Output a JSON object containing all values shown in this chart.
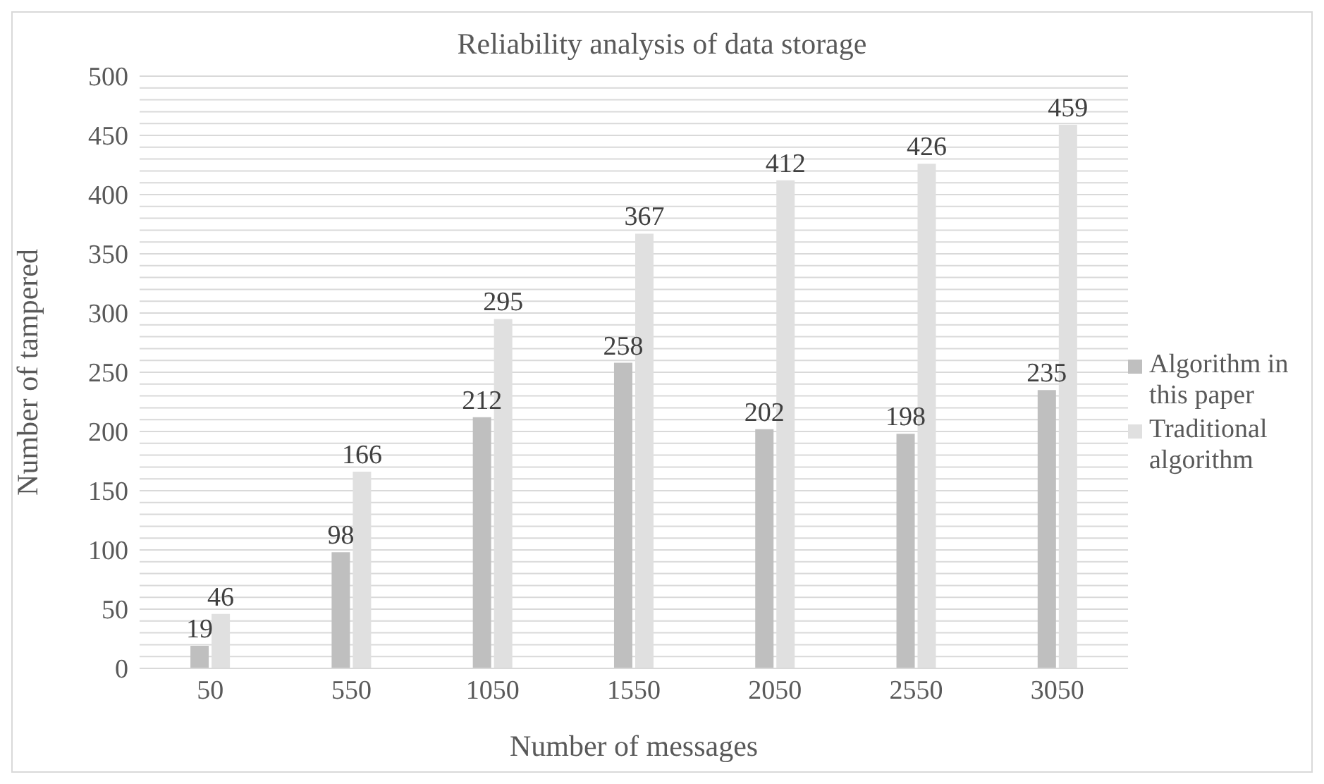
{
  "chart_data": {
    "type": "bar",
    "title": "Reliability analysis of data storage",
    "xlabel": "Number of messages",
    "ylabel": "Number of tampered",
    "categories": [
      "50",
      "550",
      "1050",
      "1550",
      "2050",
      "2550",
      "3050"
    ],
    "series": [
      {
        "name": "Algorithm in this paper",
        "color": "#bfbfbf",
        "values": [
          19,
          98,
          212,
          258,
          202,
          198,
          235
        ]
      },
      {
        "name": "Traditional algorithm",
        "color": "#e0e0e0",
        "values": [
          46,
          166,
          295,
          367,
          412,
          426,
          459
        ]
      }
    ],
    "ylim": [
      0,
      500
    ],
    "yticks": [
      0,
      {
        "value": 10,
        "label": null
      },
      {
        "value": 20,
        "label": null
      },
      {
        "value": 30,
        "label": null
      },
      {
        "value": 40,
        "label": null
      },
      50,
      {
        "value": 60,
        "label": null
      },
      {
        "value": 70,
        "label": null
      },
      {
        "value": 80,
        "label": null
      },
      {
        "value": 90,
        "label": null
      },
      100,
      {
        "value": 110,
        "label": null
      },
      {
        "value": 120,
        "label": null
      },
      {
        "value": 130,
        "label": null
      },
      {
        "value": 140,
        "label": null
      },
      150,
      {
        "value": 160,
        "label": null
      },
      {
        "value": 170,
        "label": null
      },
      {
        "value": 180,
        "label": null
      },
      {
        "value": 190,
        "label": null
      },
      200,
      {
        "value": 210,
        "label": null
      },
      {
        "value": 220,
        "label": null
      },
      {
        "value": 230,
        "label": null
      },
      {
        "value": 240,
        "label": null
      },
      250,
      {
        "value": 260,
        "label": null
      },
      {
        "value": 270,
        "label": null
      },
      {
        "value": 280,
        "label": null
      },
      {
        "value": 290,
        "label": null
      },
      300,
      {
        "value": 310,
        "label": null
      },
      {
        "value": 320,
        "label": null
      },
      {
        "value": 330,
        "label": null
      },
      {
        "value": 340,
        "label": null
      },
      350,
      {
        "value": 360,
        "label": null
      },
      {
        "value": 370,
        "label": null
      },
      {
        "value": 380,
        "label": null
      },
      {
        "value": 390,
        "label": null
      },
      400,
      {
        "value": 410,
        "label": null
      },
      {
        "value": 420,
        "label": null
      },
      {
        "value": 430,
        "label": null
      },
      {
        "value": 440,
        "label": null
      },
      450,
      {
        "value": 460,
        "label": null
      },
      {
        "value": 470,
        "label": null
      },
      {
        "value": 480,
        "label": null
      },
      {
        "value": 490,
        "label": null
      },
      500
    ],
    "grid": "y",
    "legend": "right",
    "data_labels": true
  }
}
